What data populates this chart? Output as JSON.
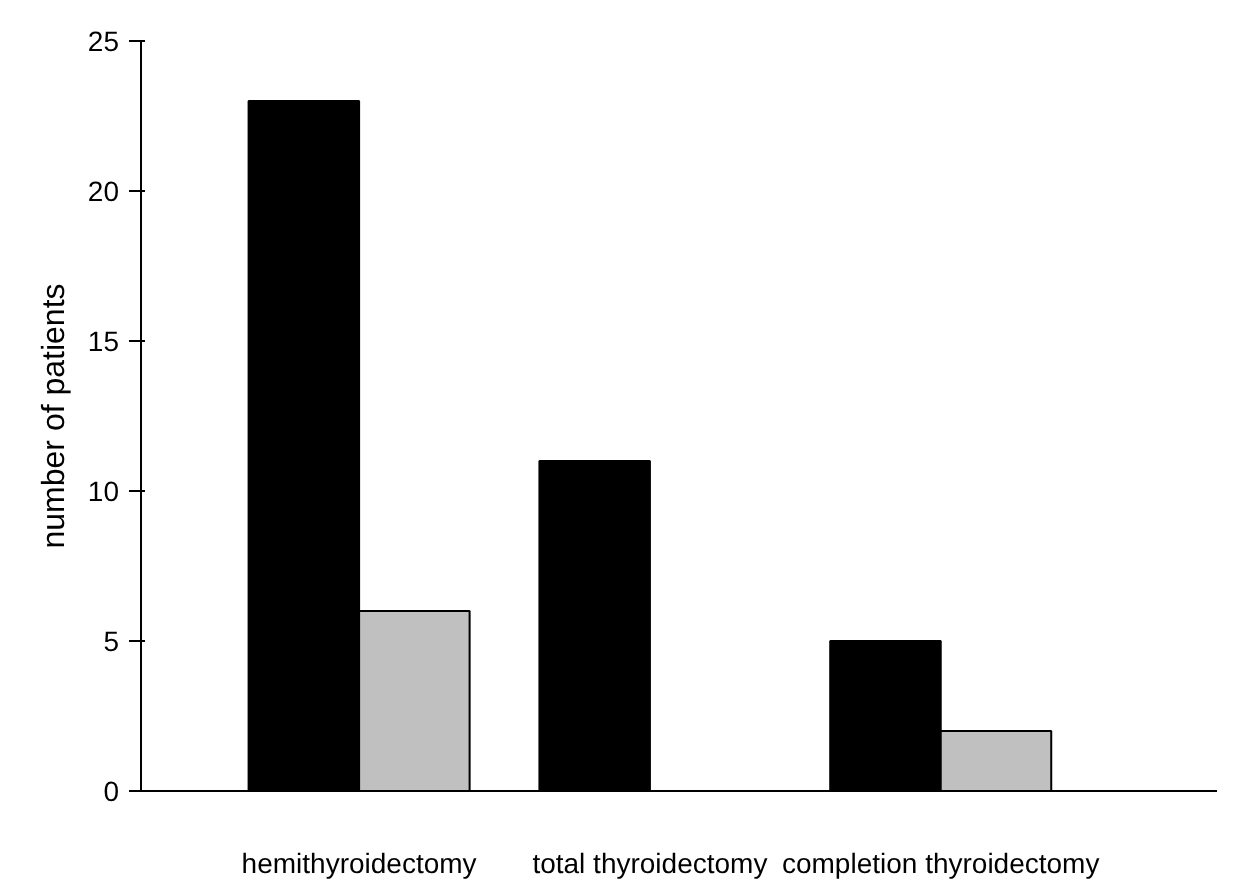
{
  "chart_data": {
    "type": "bar",
    "ylabel": "number of patients",
    "categories": [
      "hemithyroidectomy",
      "total thyroidectomy",
      "completion thyroidectomy"
    ],
    "series": [
      {
        "color": "#000000",
        "values": [
          23,
          11,
          5
        ]
      },
      {
        "color": "#c0c0c0",
        "values": [
          6,
          null,
          2
        ]
      }
    ],
    "ylim": [
      0,
      25
    ],
    "yticks": [
      0,
      5,
      10,
      15,
      20,
      25
    ],
    "grid": false
  }
}
